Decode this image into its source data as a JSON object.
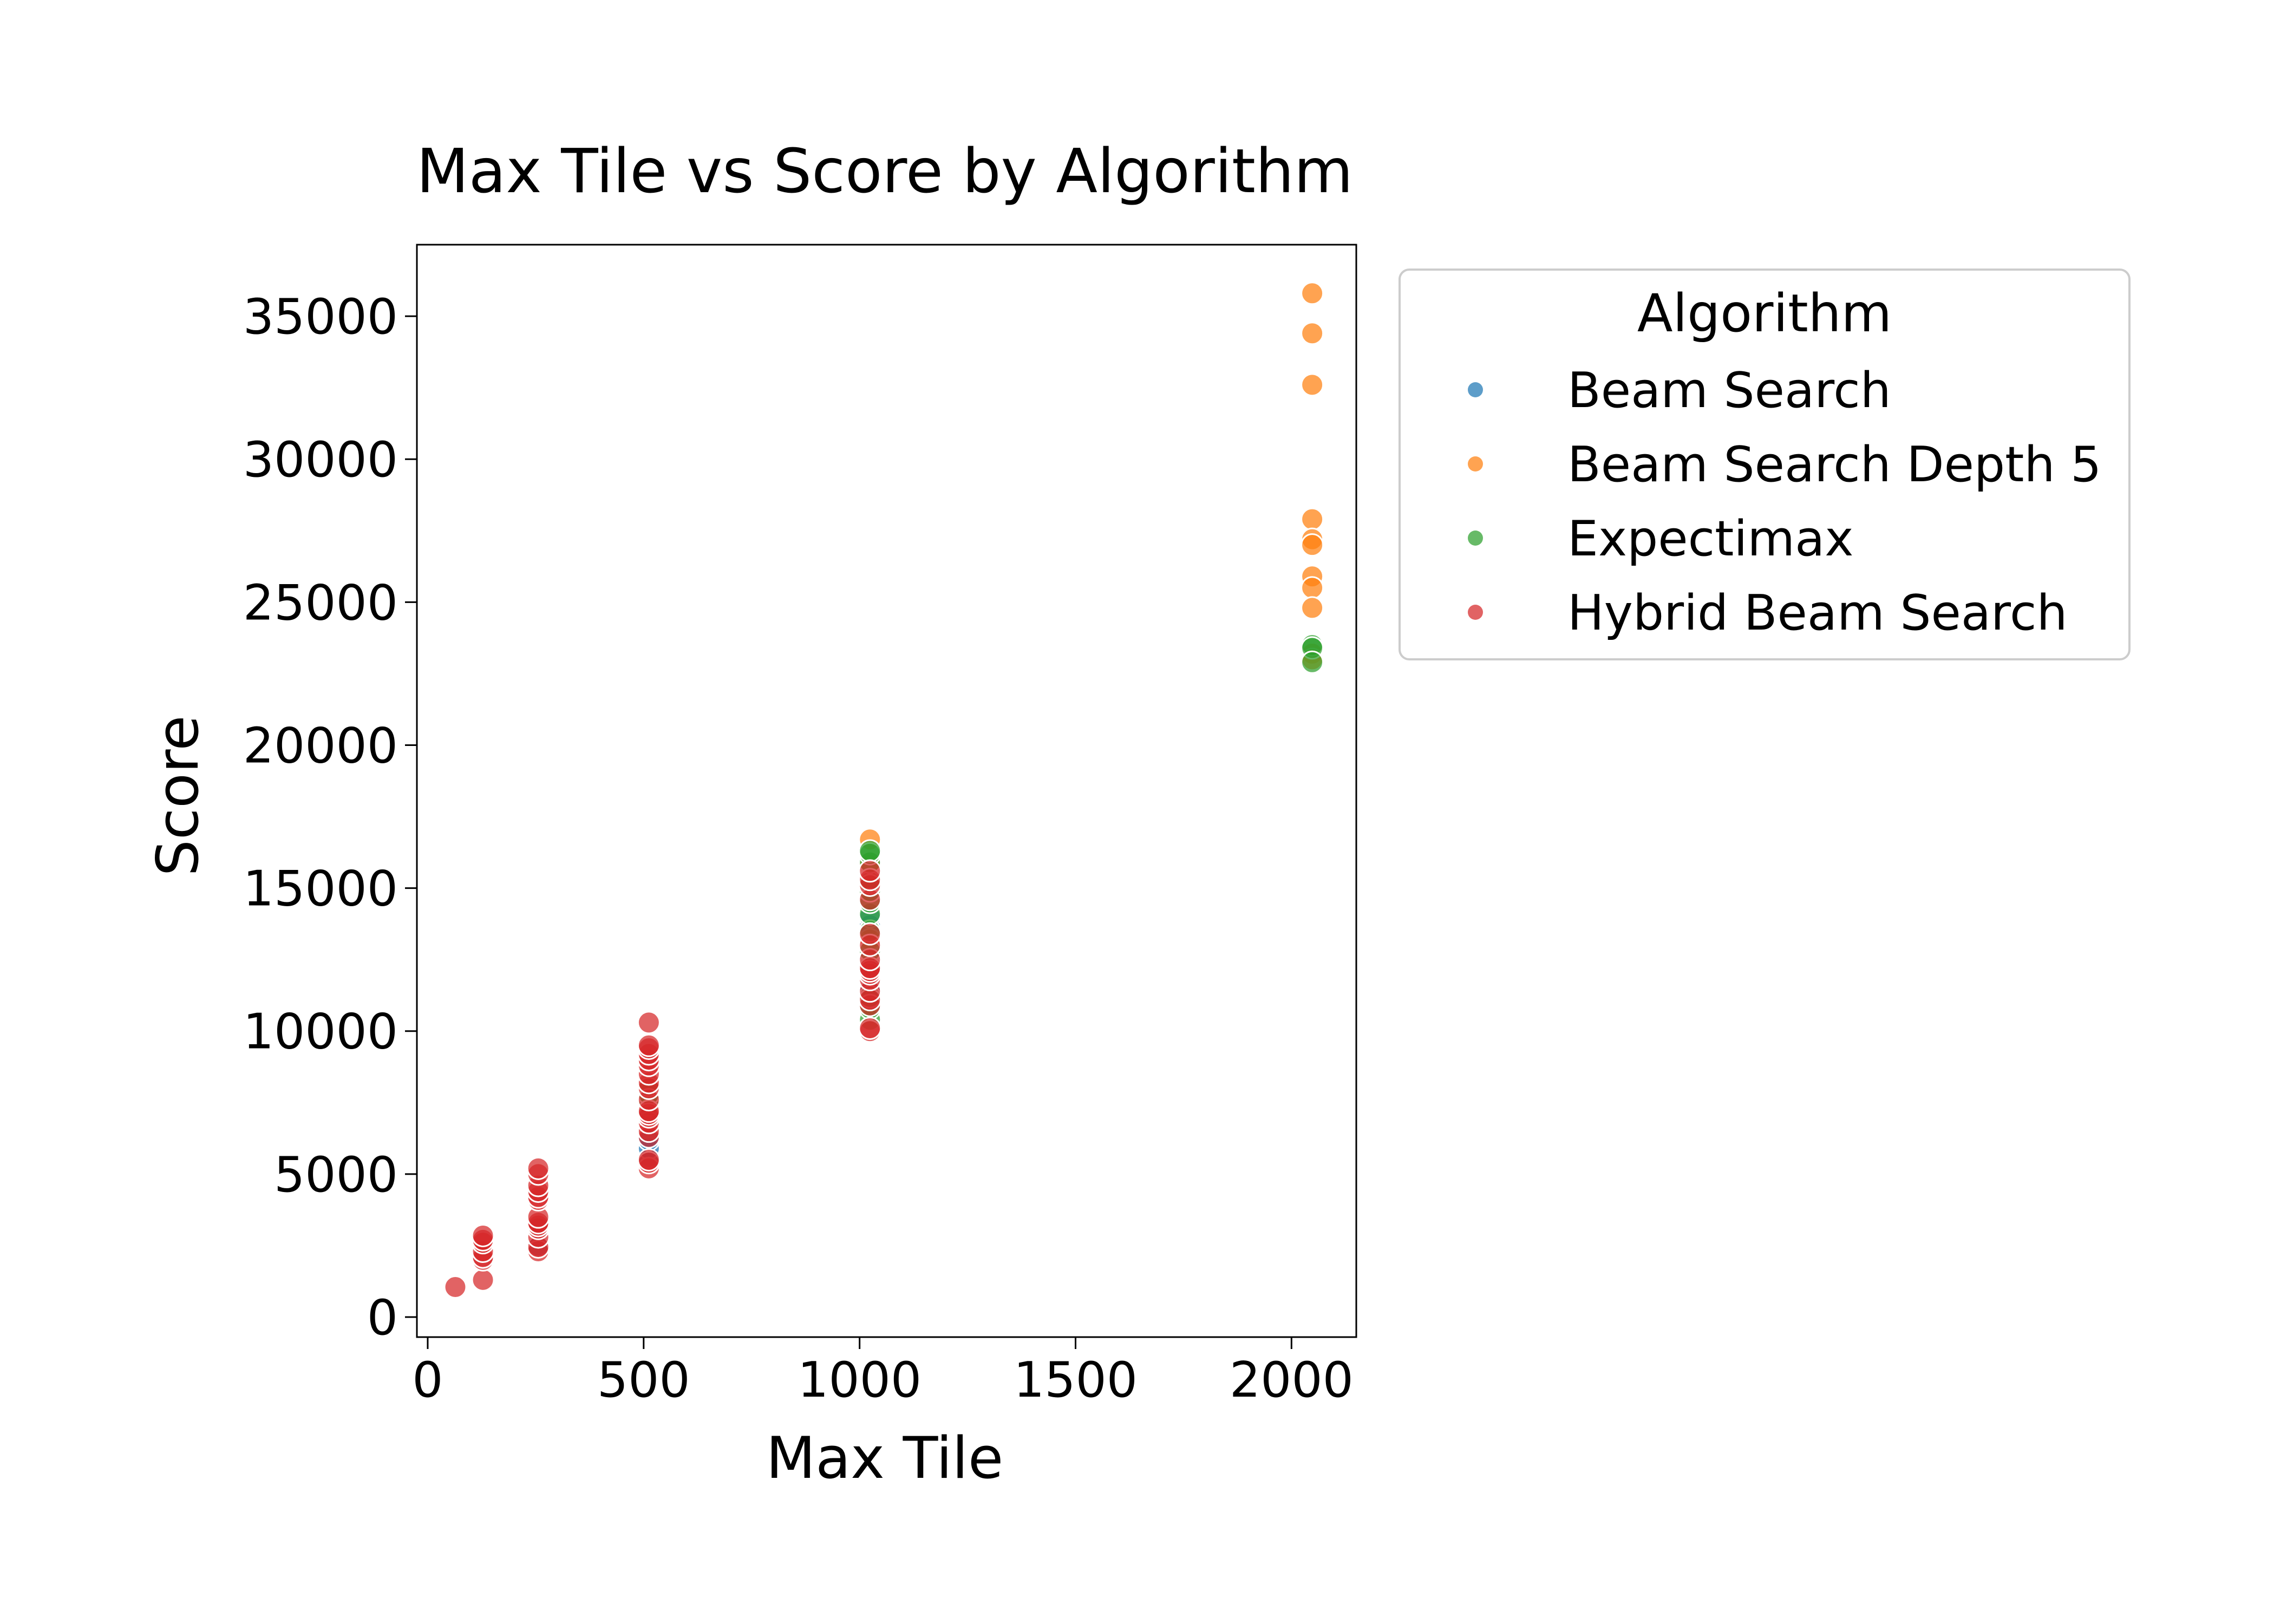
{
  "chart_data": {
    "type": "scatter",
    "title": "Max Tile vs Score by Algorithm",
    "xlabel": "Max Tile",
    "ylabel": "Score",
    "xlim": [
      -25,
      2150
    ],
    "ylim": [
      -700,
      37500
    ],
    "xticks": [
      0,
      500,
      1000,
      1500,
      2000
    ],
    "yticks": [
      0,
      5000,
      10000,
      15000,
      20000,
      25000,
      30000,
      35000
    ],
    "grid": false,
    "legend": {
      "title": "Algorithm",
      "placement": "outside-upper-right"
    },
    "series": [
      {
        "name": "Beam Search",
        "color": "#1f77b4",
        "points": [
          [
            256,
            2500
          ],
          [
            256,
            3100
          ],
          [
            512,
            5600
          ],
          [
            512,
            5900
          ],
          [
            512,
            6200
          ],
          [
            512,
            7000
          ],
          [
            1024,
            11500
          ],
          [
            1024,
            12600
          ],
          [
            1024,
            13700
          ],
          [
            1024,
            14000
          ]
        ]
      },
      {
        "name": "Beam Search Depth 5",
        "color": "#ff7f0e",
        "points": [
          [
            1024,
            13200
          ],
          [
            1024,
            15800
          ],
          [
            1024,
            16700
          ],
          [
            2048,
            35800
          ],
          [
            2048,
            34400
          ],
          [
            2048,
            32600
          ],
          [
            2048,
            27900
          ],
          [
            2048,
            27200
          ],
          [
            2048,
            27000
          ],
          [
            2048,
            25900
          ],
          [
            2048,
            25500
          ],
          [
            2048,
            24800
          ],
          [
            2048,
            23200
          ],
          [
            2048,
            23000
          ]
        ]
      },
      {
        "name": "Expectimax",
        "color": "#2ca02c",
        "points": [
          [
            512,
            7400
          ],
          [
            512,
            7800
          ],
          [
            512,
            8100
          ],
          [
            1024,
            10400
          ],
          [
            1024,
            10800
          ],
          [
            1024,
            11200
          ],
          [
            1024,
            12300
          ],
          [
            1024,
            12800
          ],
          [
            1024,
            13500
          ],
          [
            1024,
            14100
          ],
          [
            1024,
            14500
          ],
          [
            1024,
            14900
          ],
          [
            1024,
            15200
          ],
          [
            1024,
            15900
          ],
          [
            1024,
            16200
          ],
          [
            1024,
            16300
          ],
          [
            2048,
            23500
          ],
          [
            2048,
            23400
          ],
          [
            2048,
            22900
          ]
        ]
      },
      {
        "name": "Hybrid Beam Search",
        "color": "#d62728",
        "points": [
          [
            64,
            1050
          ],
          [
            128,
            1300
          ],
          [
            128,
            2000
          ],
          [
            128,
            2100
          ],
          [
            128,
            2300
          ],
          [
            128,
            2600
          ],
          [
            128,
            2700
          ],
          [
            128,
            2850
          ],
          [
            256,
            2300
          ],
          [
            256,
            2450
          ],
          [
            256,
            2800
          ],
          [
            256,
            3100
          ],
          [
            256,
            3200
          ],
          [
            256,
            3300
          ],
          [
            256,
            3500
          ],
          [
            256,
            4100
          ],
          [
            256,
            4200
          ],
          [
            256,
            4400
          ],
          [
            256,
            4600
          ],
          [
            256,
            5000
          ],
          [
            256,
            5200
          ],
          [
            512,
            5200
          ],
          [
            512,
            5400
          ],
          [
            512,
            5500
          ],
          [
            512,
            6300
          ],
          [
            512,
            6500
          ],
          [
            512,
            6800
          ],
          [
            512,
            7000
          ],
          [
            512,
            7100
          ],
          [
            512,
            7200
          ],
          [
            512,
            7600
          ],
          [
            512,
            8000
          ],
          [
            512,
            8200
          ],
          [
            512,
            8500
          ],
          [
            512,
            8800
          ],
          [
            512,
            9000
          ],
          [
            512,
            9200
          ],
          [
            512,
            9400
          ],
          [
            512,
            9500
          ],
          [
            512,
            10300
          ],
          [
            1024,
            10000
          ],
          [
            1024,
            10100
          ],
          [
            1024,
            10900
          ],
          [
            1024,
            11100
          ],
          [
            1024,
            11400
          ],
          [
            1024,
            11800
          ],
          [
            1024,
            12000
          ],
          [
            1024,
            12100
          ],
          [
            1024,
            12200
          ],
          [
            1024,
            12500
          ],
          [
            1024,
            13000
          ],
          [
            1024,
            13400
          ],
          [
            1024,
            14600
          ],
          [
            1024,
            15100
          ],
          [
            1024,
            15300
          ],
          [
            1024,
            15600
          ]
        ]
      }
    ]
  }
}
